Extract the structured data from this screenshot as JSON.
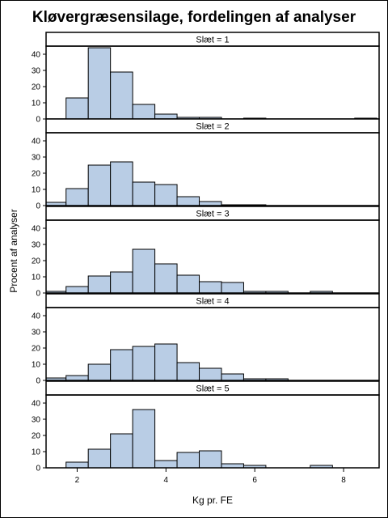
{
  "chart_data": {
    "type": "bar",
    "title": "Kløvergræsensilage, fordelingen af analyser",
    "xlabel": "Kg pr. FE",
    "ylabel": "Procent af analyser",
    "xlim": [
      1.3,
      8.8
    ],
    "ylim": [
      0,
      45
    ],
    "xticks": [
      2,
      4,
      6,
      8
    ],
    "yticks": [
      0,
      10,
      20,
      30,
      40
    ],
    "bin_edges": [
      1.25,
      1.75,
      2.25,
      2.75,
      3.25,
      3.75,
      4.25,
      4.75,
      5.25,
      5.75,
      6.25,
      6.75,
      7.25,
      7.75,
      8.25,
      8.75
    ],
    "panels": [
      {
        "label": "Slæt = 1",
        "values": [
          0,
          13,
          44,
          29,
          9,
          3,
          1,
          1,
          0,
          0.5,
          0,
          0,
          0,
          0,
          0.5
        ]
      },
      {
        "label": "Slæt = 2",
        "values": [
          2,
          10.5,
          25,
          27,
          14.5,
          13,
          5.5,
          2.5,
          0.5,
          0.5,
          0,
          0,
          0,
          0,
          0
        ]
      },
      {
        "label": "Slæt = 3",
        "values": [
          1,
          4,
          10.5,
          13,
          27,
          18,
          11,
          7,
          6.5,
          1,
          1,
          0,
          1,
          0,
          0
        ]
      },
      {
        "label": "Slæt = 4",
        "values": [
          1.5,
          3,
          10,
          19,
          21,
          22.5,
          11,
          7.5,
          4,
          1,
          1,
          0,
          0,
          0,
          0
        ]
      },
      {
        "label": "Slæt = 5",
        "values": [
          0,
          3.5,
          11.5,
          21,
          36,
          4.5,
          9.5,
          10.5,
          2.5,
          1.5,
          0,
          0,
          1.5,
          0,
          0
        ]
      }
    ]
  }
}
